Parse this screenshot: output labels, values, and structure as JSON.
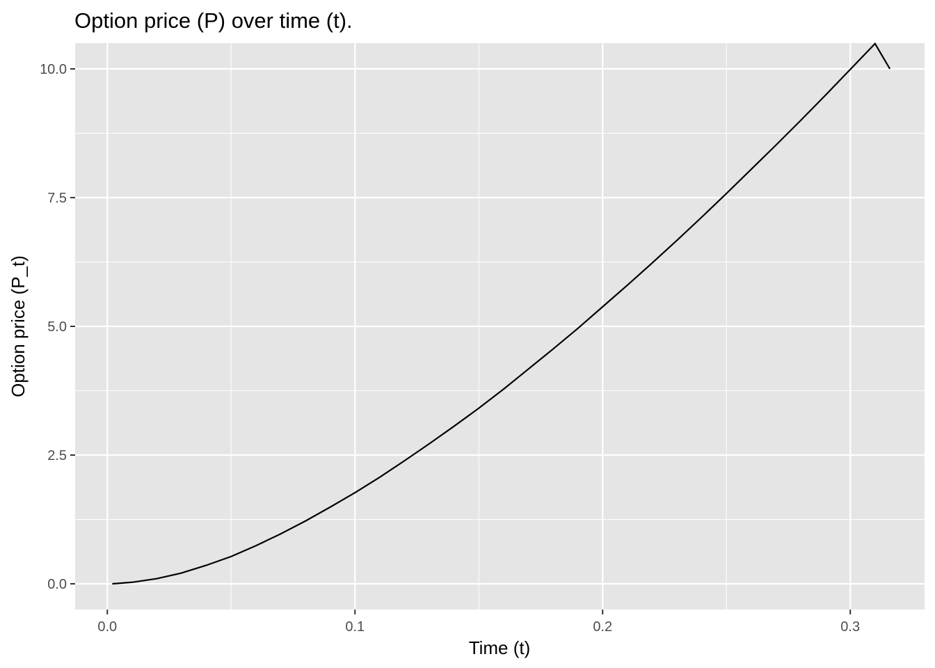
{
  "chart_data": {
    "type": "line",
    "title": "Option price (P) over time (t).",
    "xlabel": "Time (t)",
    "ylabel": "Option price (P_t)",
    "xlim": [
      -0.013,
      0.33
    ],
    "ylim": [
      -0.5,
      10.5
    ],
    "x_ticks": [
      0.0,
      0.1,
      0.2,
      0.3
    ],
    "x_tick_labels": [
      "0.0",
      "0.1",
      "0.2",
      "0.3"
    ],
    "y_ticks": [
      0.0,
      2.5,
      5.0,
      7.5,
      10.0
    ],
    "y_tick_labels": [
      "0.0",
      "2.5",
      "5.0",
      "7.5",
      "10.0"
    ],
    "grid": true,
    "legend": "none",
    "colors": {
      "panel": "#e5e5e5",
      "grid": "#ffffff",
      "line": "#000000",
      "tick": "#333333"
    },
    "series": [
      {
        "x": [
          0.002,
          0.01,
          0.02,
          0.03,
          0.04,
          0.05,
          0.06,
          0.07,
          0.08,
          0.09,
          0.1,
          0.11,
          0.12,
          0.13,
          0.14,
          0.15,
          0.16,
          0.17,
          0.18,
          0.19,
          0.2,
          0.21,
          0.22,
          0.23,
          0.24,
          0.25,
          0.26,
          0.27,
          0.28,
          0.29,
          0.3,
          0.31,
          0.316
        ],
        "values": [
          0.0,
          0.03,
          0.1,
          0.21,
          0.36,
          0.53,
          0.74,
          0.97,
          1.22,
          1.49,
          1.77,
          2.07,
          2.39,
          2.72,
          3.06,
          3.41,
          3.78,
          4.17,
          4.56,
          4.96,
          5.38,
          5.8,
          6.23,
          6.67,
          7.12,
          7.58,
          8.05,
          8.52,
          9.0,
          9.49,
          9.99,
          10.49,
          10.0
        ]
      }
    ]
  }
}
